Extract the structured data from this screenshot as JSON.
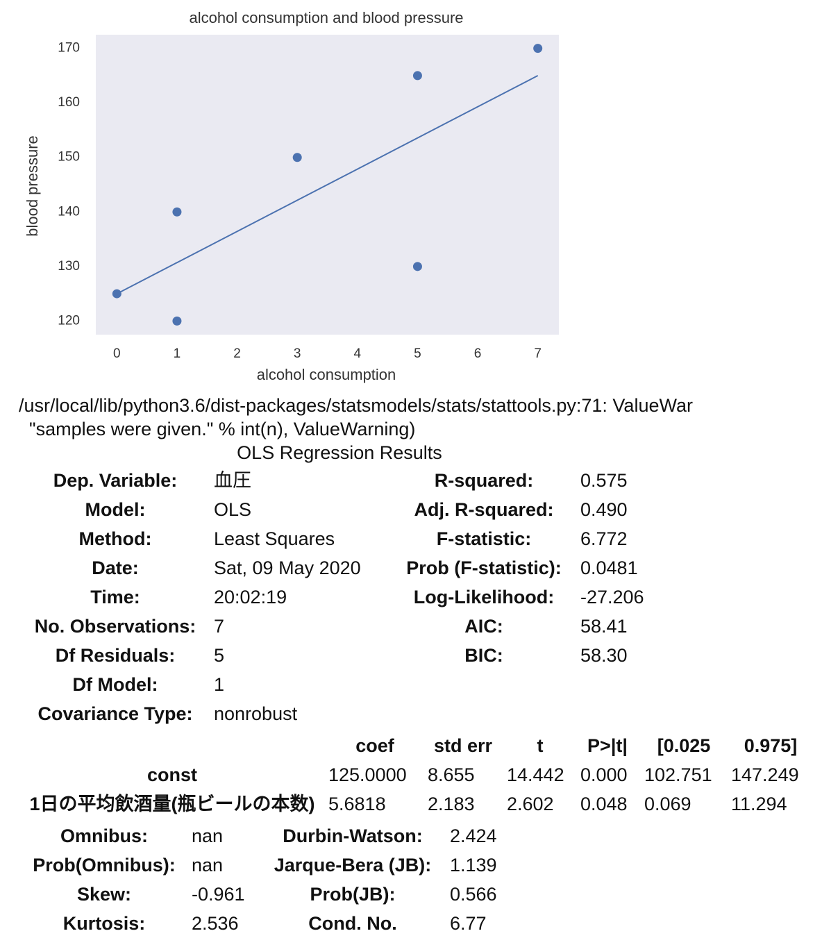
{
  "chart_data": {
    "type": "scatter",
    "title": "alcohol consumption and blood pressure",
    "x_label": "alcohol consumption",
    "y_label": "blood pressure",
    "x": [
      0,
      1,
      1,
      3,
      5,
      5,
      7
    ],
    "y": [
      125,
      140,
      120,
      150,
      165,
      130,
      170
    ],
    "color": "#4c72b0",
    "fit": {
      "x": [
        0,
        7
      ],
      "y": [
        125,
        165
      ]
    },
    "xlim": [
      -0.35,
      7.35
    ],
    "ylim": [
      117.5,
      172.5
    ],
    "xticks": [
      0,
      1,
      2,
      3,
      4,
      5,
      6,
      7
    ],
    "yticks": [
      120,
      130,
      140,
      150,
      160,
      170
    ],
    "grid": false,
    "background": "#eaeaf2"
  },
  "warning": [
    "/usr/local/lib/python3.6/dist-packages/statsmodels/stats/stattools.py:71: ValueWar",
    "\"samples were given.\" % int(n), ValueWarning)"
  ],
  "summary": {
    "title": "OLS Regression Results",
    "table1": [
      [
        "Dep. Variable:",
        "血圧",
        "R-squared:",
        "0.575"
      ],
      [
        "Model:",
        "OLS",
        "Adj. R-squared:",
        "0.490"
      ],
      [
        "Method:",
        "Least Squares",
        "F-statistic:",
        "6.772"
      ],
      [
        "Date:",
        "Sat, 09 May 2020",
        "Prob (F-statistic):",
        "0.0481"
      ],
      [
        "Time:",
        "20:02:19",
        "Log-Likelihood:",
        "-27.206"
      ],
      [
        "No. Observations:",
        "7",
        "AIC:",
        "58.41"
      ],
      [
        "Df Residuals:",
        "5",
        "BIC:",
        "58.30"
      ],
      [
        "Df Model:",
        "1"
      ],
      [
        "Covariance Type:",
        "nonrobust"
      ]
    ],
    "table2_header": [
      "coef",
      "std err",
      "t",
      "P>|t|",
      "[0.025",
      "0.975]"
    ],
    "table2": [
      [
        "const",
        "125.0000",
        "8.655",
        "14.442",
        "0.000",
        "102.751",
        "147.249"
      ],
      [
        "1日の平均飲酒量(瓶ビールの本数)",
        "5.6818",
        "2.183",
        "2.602",
        "0.048",
        "0.069",
        "11.294"
      ]
    ],
    "table3": [
      [
        "Omnibus:",
        "nan",
        "Durbin-Watson:",
        "2.424"
      ],
      [
        "Prob(Omnibus):",
        "nan",
        "Jarque-Bera (JB):",
        "1.139"
      ],
      [
        "Skew:",
        "-0.961",
        "Prob(JB):",
        "0.566"
      ],
      [
        "Kurtosis:",
        "2.536",
        "Cond. No.",
        "6.77"
      ]
    ]
  }
}
